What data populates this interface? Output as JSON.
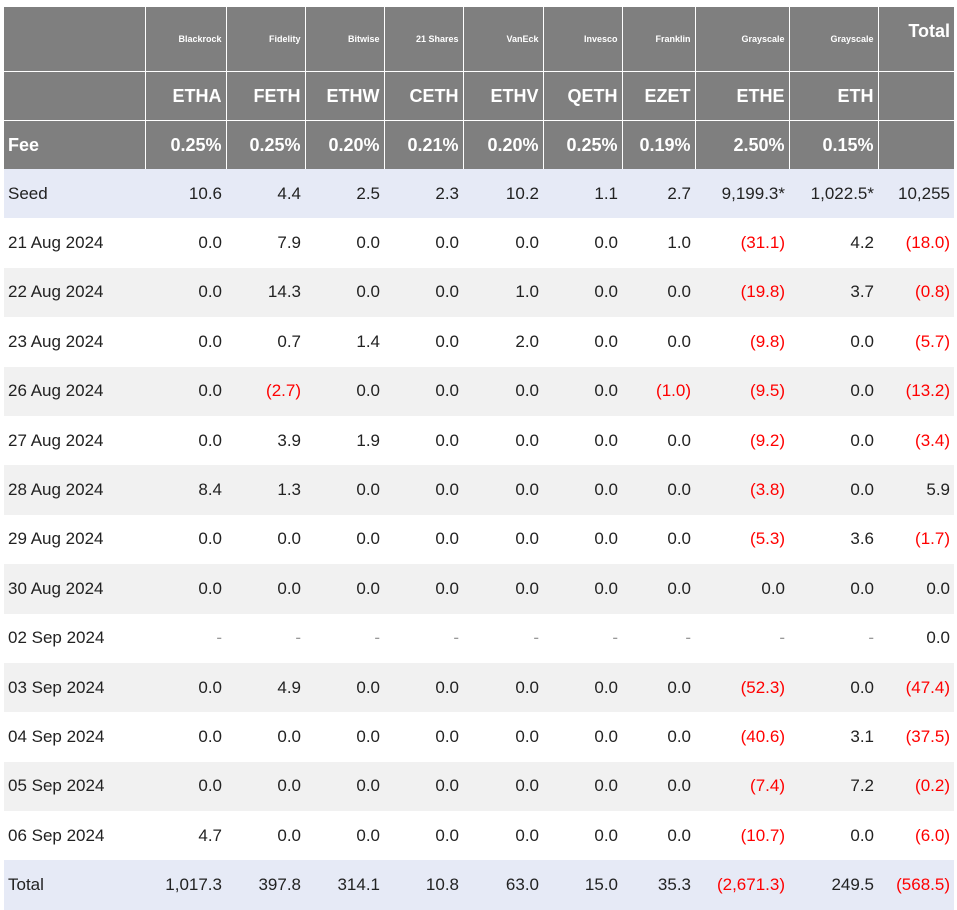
{
  "table": {
    "issuers": [
      "Blackrock",
      "Fidelity",
      "Bitwise",
      "21 Shares",
      "VanEck",
      "Invesco",
      "Franklin",
      "Grayscale",
      "Grayscale"
    ],
    "total_label": "Total",
    "tickers": [
      "ETHA",
      "FETH",
      "ETHW",
      "CETH",
      "ETHV",
      "QETH",
      "EZET",
      "ETHE",
      "ETH"
    ],
    "fee_label": "Fee",
    "fees": [
      "0.25%",
      "0.25%",
      "0.20%",
      "0.21%",
      "0.20%",
      "0.25%",
      "0.19%",
      "2.50%",
      "0.15%"
    ],
    "rows": [
      {
        "label": "Seed",
        "cells": [
          "10.6",
          "4.4",
          "2.5",
          "2.3",
          "10.2",
          "1.1",
          "2.7",
          "9,199.3*",
          "1,022.5*",
          "10,255"
        ]
      },
      {
        "label": "21 Aug 2024",
        "cells": [
          "0.0",
          "7.9",
          "0.0",
          "0.0",
          "0.0",
          "0.0",
          "1.0",
          "(31.1)",
          "4.2",
          "(18.0)"
        ]
      },
      {
        "label": "22 Aug 2024",
        "cells": [
          "0.0",
          "14.3",
          "0.0",
          "0.0",
          "1.0",
          "0.0",
          "0.0",
          "(19.8)",
          "3.7",
          "(0.8)"
        ]
      },
      {
        "label": "23 Aug 2024",
        "cells": [
          "0.0",
          "0.7",
          "1.4",
          "0.0",
          "2.0",
          "0.0",
          "0.0",
          "(9.8)",
          "0.0",
          "(5.7)"
        ]
      },
      {
        "label": "26 Aug 2024",
        "cells": [
          "0.0",
          "(2.7)",
          "0.0",
          "0.0",
          "0.0",
          "0.0",
          "(1.0)",
          "(9.5)",
          "0.0",
          "(13.2)"
        ]
      },
      {
        "label": "27 Aug 2024",
        "cells": [
          "0.0",
          "3.9",
          "1.9",
          "0.0",
          "0.0",
          "0.0",
          "0.0",
          "(9.2)",
          "0.0",
          "(3.4)"
        ]
      },
      {
        "label": "28 Aug 2024",
        "cells": [
          "8.4",
          "1.3",
          "0.0",
          "0.0",
          "0.0",
          "0.0",
          "0.0",
          "(3.8)",
          "0.0",
          "5.9"
        ]
      },
      {
        "label": "29 Aug 2024",
        "cells": [
          "0.0",
          "0.0",
          "0.0",
          "0.0",
          "0.0",
          "0.0",
          "0.0",
          "(5.3)",
          "3.6",
          "(1.7)"
        ]
      },
      {
        "label": "30 Aug 2024",
        "cells": [
          "0.0",
          "0.0",
          "0.0",
          "0.0",
          "0.0",
          "0.0",
          "0.0",
          "0.0",
          "0.0",
          "0.0"
        ]
      },
      {
        "label": "02 Sep 2024",
        "cells": [
          "-",
          "-",
          "-",
          "-",
          "-",
          "-",
          "-",
          "-",
          "-",
          "0.0"
        ]
      },
      {
        "label": "03 Sep 2024",
        "cells": [
          "0.0",
          "4.9",
          "0.0",
          "0.0",
          "0.0",
          "0.0",
          "0.0",
          "(52.3)",
          "0.0",
          "(47.4)"
        ]
      },
      {
        "label": "04 Sep 2024",
        "cells": [
          "0.0",
          "0.0",
          "0.0",
          "0.0",
          "0.0",
          "0.0",
          "0.0",
          "(40.6)",
          "3.1",
          "(37.5)"
        ]
      },
      {
        "label": "05 Sep 2024",
        "cells": [
          "0.0",
          "0.0",
          "0.0",
          "0.0",
          "0.0",
          "0.0",
          "0.0",
          "(7.4)",
          "7.2",
          "(0.2)"
        ]
      },
      {
        "label": "06 Sep 2024",
        "cells": [
          "4.7",
          "0.0",
          "0.0",
          "0.0",
          "0.0",
          "0.0",
          "0.0",
          "(10.7)",
          "0.0",
          "(6.0)"
        ]
      },
      {
        "label": "Total",
        "cells": [
          "1,017.3",
          "397.8",
          "314.1",
          "10.8",
          "63.0",
          "15.0",
          "35.3",
          "(2,671.3)",
          "249.5",
          "(568.5)"
        ]
      }
    ]
  },
  "colors": {
    "header_bg": "#7f7f7f",
    "header_text": "#ffffff",
    "highlight_row_bg": "#e6eaf6",
    "alt_row_bg": "#f1f1f1",
    "negative_text": "#ff0000"
  }
}
